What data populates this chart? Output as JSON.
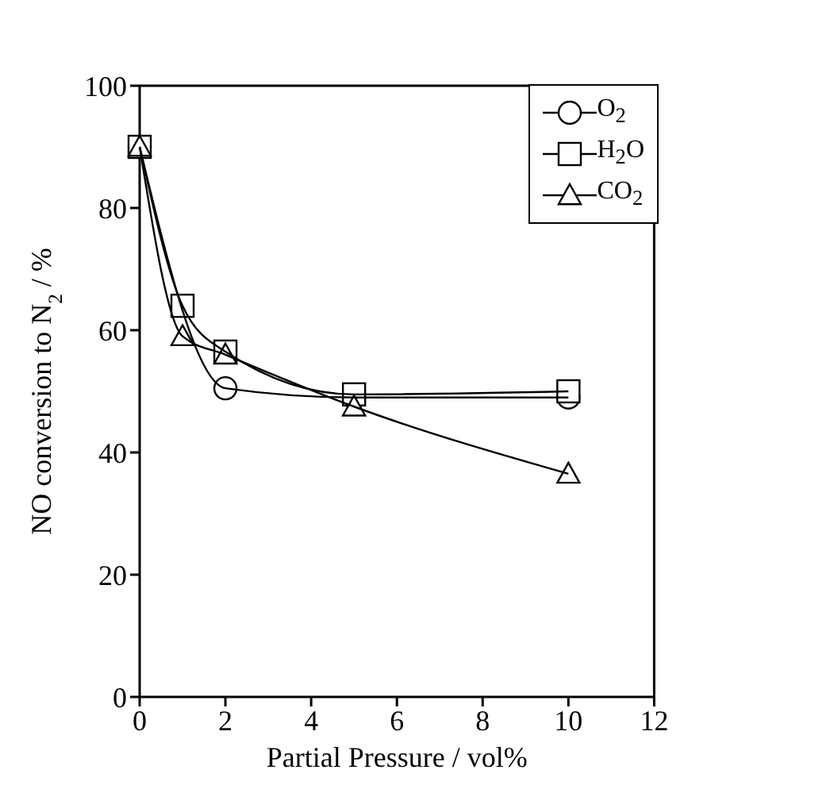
{
  "chart_data": {
    "type": "line",
    "xlabel": "Partial Pressure / vol%",
    "ylabel": "NO conversion to N$_{2}$ / %",
    "x": [
      0,
      1,
      2,
      5,
      10
    ],
    "series": [
      {
        "name": "O$_{2}$",
        "color": "#000000",
        "marker": "circle",
        "values": [
          90,
          null,
          50.5,
          49,
          49
        ]
      },
      {
        "name": "H$_{2}$O",
        "color": "#000000",
        "marker": "square",
        "values": [
          90,
          64,
          56.5,
          49.5,
          50
        ]
      },
      {
        "name": "CO$_{2}$",
        "color": "#000000",
        "marker": "triangle",
        "values": [
          90,
          59,
          56,
          47.5,
          36.5
        ]
      }
    ],
    "xlim": [
      0,
      12
    ],
    "xticks": [
      0,
      2,
      4,
      6,
      8,
      10,
      12
    ],
    "ylim": [
      0,
      100
    ],
    "yticks": [
      0,
      20,
      40,
      60,
      80,
      100
    ],
    "legend": "top right",
    "grid": false,
    "line_style": "solid"
  }
}
